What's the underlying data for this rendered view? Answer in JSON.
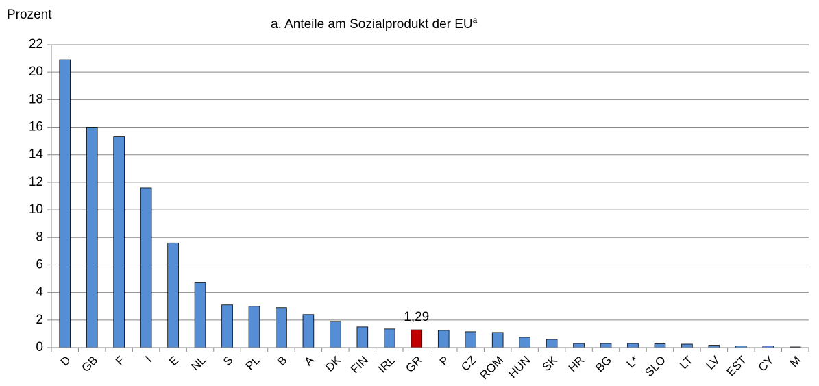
{
  "chart_data": {
    "type": "bar",
    "title": "a. Anteile am Sozialprodukt der EU",
    "title_superscript": "a",
    "y_axis_label": "Prozent",
    "categories": [
      "D",
      "GB",
      "F",
      "I",
      "E",
      "NL",
      "S",
      "PL",
      "B",
      "A",
      "DK",
      "FIN",
      "IRL",
      "GR",
      "P",
      "CZ",
      "ROM",
      "HUN",
      "SK",
      "HR",
      "BG",
      "L*",
      "SLO",
      "LT",
      "LV",
      "EST",
      "CY",
      "M"
    ],
    "values": [
      20.9,
      16.0,
      15.3,
      11.6,
      7.6,
      4.7,
      3.1,
      3.0,
      2.9,
      2.4,
      1.9,
      1.5,
      1.35,
      1.29,
      1.25,
      1.15,
      1.1,
      0.75,
      0.6,
      0.3,
      0.3,
      0.3,
      0.27,
      0.25,
      0.17,
      0.13,
      0.12,
      0.05
    ],
    "value_labels": [
      null,
      null,
      null,
      null,
      null,
      null,
      null,
      null,
      null,
      null,
      null,
      null,
      null,
      "1,29",
      null,
      null,
      null,
      null,
      null,
      null,
      null,
      null,
      null,
      null,
      null,
      null,
      null,
      null
    ],
    "colors": [
      "#558ed5",
      "#558ed5",
      "#558ed5",
      "#558ed5",
      "#558ed5",
      "#558ed5",
      "#558ed5",
      "#558ed5",
      "#558ed5",
      "#558ed5",
      "#558ed5",
      "#558ed5",
      "#558ed5",
      "#c00000",
      "#558ed5",
      "#558ed5",
      "#558ed5",
      "#558ed5",
      "#558ed5",
      "#558ed5",
      "#558ed5",
      "#558ed5",
      "#558ed5",
      "#558ed5",
      "#558ed5",
      "#558ed5",
      "#558ed5",
      "#558ed5"
    ],
    "ylim": [
      0,
      22
    ],
    "yticks": [
      0,
      2,
      4,
      6,
      8,
      10,
      12,
      14,
      16,
      18,
      20,
      22
    ],
    "grid": true
  }
}
